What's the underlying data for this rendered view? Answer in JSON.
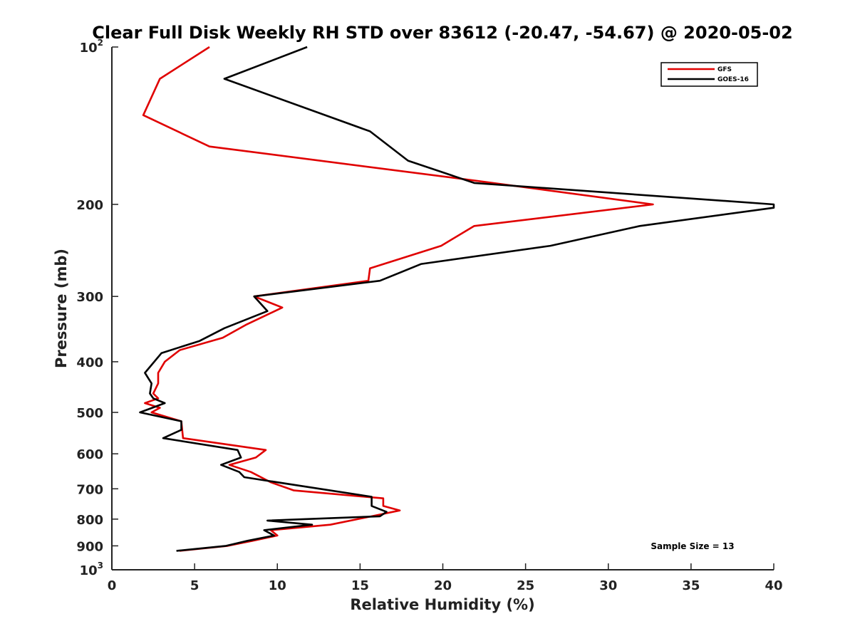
{
  "chart_data": {
    "type": "line",
    "title": "Clear Full Disk Weekly RH STD over 83612 (-20.47, -54.67) @ 2020-05-02",
    "xlabel": "Relative Humidity (%)",
    "ylabel": "Pressure (mb)",
    "xlim": [
      0,
      40
    ],
    "ylim": [
      100,
      1000
    ],
    "y_scale": "log",
    "y_reversed": true,
    "x_ticks": [
      "0",
      "5",
      "10",
      "15",
      "20",
      "25",
      "30",
      "35",
      "40"
    ],
    "y_ticks": [
      {
        "value": 100,
        "label": "10",
        "sup": "2"
      },
      {
        "value": 200,
        "label": "200",
        "sup": ""
      },
      {
        "value": 300,
        "label": "300",
        "sup": ""
      },
      {
        "value": 400,
        "label": "400",
        "sup": ""
      },
      {
        "value": 500,
        "label": "500",
        "sup": ""
      },
      {
        "value": 600,
        "label": "600",
        "sup": ""
      },
      {
        "value": 700,
        "label": "700",
        "sup": ""
      },
      {
        "value": 800,
        "label": "800",
        "sup": ""
      },
      {
        "value": 900,
        "label": "900",
        "sup": ""
      },
      {
        "value": 1000,
        "label": "10",
        "sup": "3"
      }
    ],
    "grid": false,
    "legend_position": "top-right",
    "annotation": "Sample Size = 13",
    "series": [
      {
        "name": "GFS",
        "color": "#e00000",
        "x": [
          5.9,
          2.9,
          1.9,
          5.9,
          21.9,
          32.7,
          21.9,
          19.9,
          15.6,
          15.5,
          8.6,
          10.3,
          8.1,
          6.7,
          4.1,
          3.2,
          2.8,
          2.8,
          2.5,
          2.8,
          2.0,
          2.9,
          2.4,
          4.2,
          4.3,
          9.3,
          8.7,
          7.1,
          8.4,
          9.6,
          11.0,
          16.4,
          16.4,
          17.4,
          15.7,
          13.2,
          9.6,
          10.0,
          8.5,
          7.0,
          4.1
        ],
        "y": [
          100,
          115,
          135,
          155,
          180,
          200,
          220,
          240,
          265,
          280,
          300,
          315,
          340,
          360,
          380,
          400,
          420,
          440,
          460,
          470,
          480,
          490,
          500,
          520,
          560,
          590,
          610,
          630,
          650,
          680,
          705,
          730,
          755,
          770,
          790,
          820,
          840,
          860,
          880,
          900,
          920
        ]
      },
      {
        "name": "GOES-16",
        "color": "#000000",
        "x": [
          11.8,
          6.8,
          15.6,
          17.9,
          21.9,
          40.0,
          40.0,
          31.9,
          26.5,
          18.7,
          16.2,
          8.6,
          9.4,
          6.8,
          5.3,
          3.0,
          2.0,
          2.4,
          2.3,
          2.5,
          3.2,
          1.7,
          4.2,
          4.2,
          3.1,
          7.6,
          7.8,
          6.6,
          7.7,
          8.0,
          15.7,
          15.7,
          16.6,
          16.2,
          9.4,
          12.1,
          9.2,
          9.8,
          8.2,
          6.9,
          3.9
        ],
        "y": [
          100,
          115,
          145,
          165,
          182,
          200,
          203,
          220,
          240,
          260,
          280,
          300,
          320,
          345,
          365,
          385,
          420,
          440,
          460,
          470,
          480,
          500,
          520,
          540,
          560,
          590,
          610,
          630,
          650,
          665,
          725,
          755,
          775,
          790,
          805,
          820,
          840,
          860,
          880,
          900,
          920
        ]
      }
    ]
  }
}
